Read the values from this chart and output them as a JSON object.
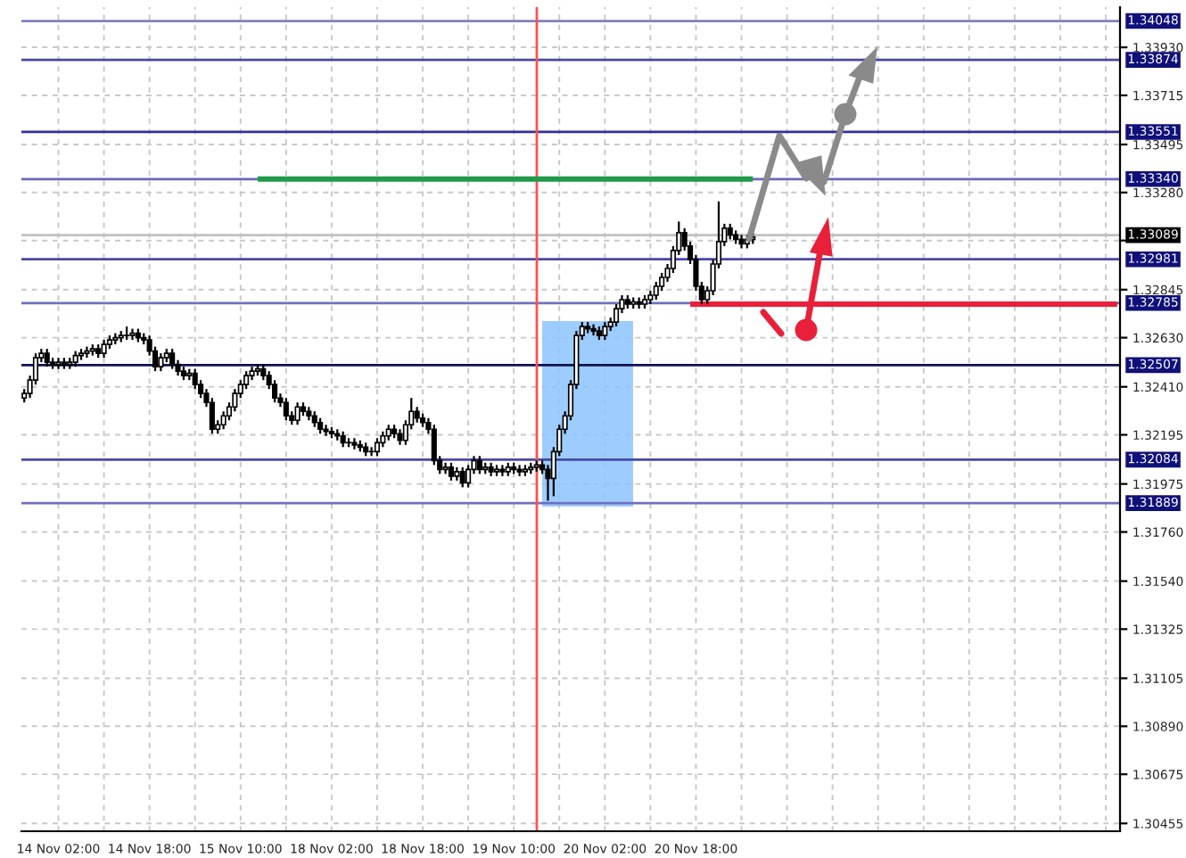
{
  "chart_data": {
    "type": "candlestick",
    "categories": [
      null,
      null,
      null,
      null,
      null,
      null,
      "14 Nov 02:00",
      null,
      null,
      null,
      null,
      null,
      null,
      null,
      null,
      null,
      null,
      null,
      null,
      null,
      null,
      null,
      "14 Nov 18:00",
      null,
      null,
      null,
      null,
      null,
      null,
      null,
      null,
      null,
      null,
      null,
      null,
      null,
      null,
      null,
      "15 Nov 10:00",
      null,
      null,
      null,
      null,
      null,
      null,
      null,
      null,
      null,
      null,
      null,
      null,
      null,
      null,
      null,
      "18 Nov 02:00",
      null,
      null,
      null,
      null,
      null,
      null,
      null,
      null,
      null,
      null,
      null,
      null,
      null,
      null,
      null,
      "18 Nov 18:00",
      null,
      null,
      null,
      null,
      null,
      null,
      null,
      null,
      null,
      null,
      null,
      null,
      null,
      null,
      null,
      "19 Nov 10:00",
      null,
      null,
      null,
      null,
      null,
      null,
      null,
      null,
      null,
      null,
      null,
      null,
      null,
      null,
      null,
      "20 Nov 02:00",
      null,
      null,
      null,
      null,
      null,
      null,
      null,
      null,
      null,
      null,
      null,
      null,
      null,
      null,
      null,
      "20 Nov 18:00",
      null,
      null,
      null,
      null,
      null,
      null,
      null,
      null,
      null,
      null,
      null,
      null,
      null,
      null,
      null,
      null,
      null,
      null,
      null,
      null,
      null,
      null,
      null,
      null,
      null,
      null,
      null,
      null,
      null,
      null,
      null,
      null,
      null,
      null,
      null,
      null,
      null,
      null,
      null,
      null,
      null,
      null,
      null,
      null,
      null,
      null,
      null,
      null,
      null,
      null,
      null,
      null,
      null,
      null,
      null,
      null,
      null,
      null,
      null,
      null,
      null,
      null,
      null,
      null,
      null,
      null,
      null,
      null,
      null,
      null,
      null,
      null,
      null,
      null
    ],
    "ohlc": [
      [
        1.3236,
        1.324,
        1.3234,
        1.3238
      ],
      [
        1.3238,
        1.3246,
        1.3236,
        1.3244
      ],
      [
        1.3244,
        1.3256,
        1.3242,
        1.3254
      ],
      [
        1.3254,
        1.3258,
        1.3252,
        1.3256
      ],
      [
        1.3256,
        1.3258,
        1.325,
        1.3252
      ],
      [
        1.3252,
        1.3254,
        1.3249,
        1.3251
      ],
      [
        1.3251,
        1.3254,
        1.3249,
        1.3252
      ],
      [
        1.3252,
        1.3254,
        1.3249,
        1.3251
      ],
      [
        1.3251,
        1.3254,
        1.3249,
        1.3252
      ],
      [
        1.3252,
        1.3257,
        1.325,
        1.3255
      ],
      [
        1.3255,
        1.3258,
        1.3253,
        1.3256
      ],
      [
        1.3256,
        1.3259,
        1.3254,
        1.3257
      ],
      [
        1.3257,
        1.326,
        1.3255,
        1.3258
      ],
      [
        1.3258,
        1.326,
        1.3254,
        1.3256
      ],
      [
        1.3256,
        1.3262,
        1.3254,
        1.326
      ],
      [
        1.326,
        1.3264,
        1.3258,
        1.3262
      ],
      [
        1.3262,
        1.3265,
        1.326,
        1.3263
      ],
      [
        1.3263,
        1.3266,
        1.3261,
        1.3264
      ],
      [
        1.3264,
        1.3268,
        1.3262,
        1.3264
      ],
      [
        1.3264,
        1.3267,
        1.3262,
        1.3265
      ],
      [
        1.3265,
        1.3267,
        1.3261,
        1.3263
      ],
      [
        1.3263,
        1.3265,
        1.326,
        1.3262
      ],
      [
        1.3262,
        1.3264,
        1.3255,
        1.3257
      ],
      [
        1.3257,
        1.3259,
        1.3248,
        1.325
      ],
      [
        1.325,
        1.3256,
        1.3248,
        1.3254
      ],
      [
        1.3254,
        1.3258,
        1.3252,
        1.3256
      ],
      [
        1.3256,
        1.3258,
        1.3249,
        1.3251
      ],
      [
        1.3251,
        1.3253,
        1.3246,
        1.3248
      ],
      [
        1.3248,
        1.325,
        1.3244,
        1.3246
      ],
      [
        1.3246,
        1.3249,
        1.3244,
        1.3247
      ],
      [
        1.3247,
        1.3249,
        1.324,
        1.3242
      ],
      [
        1.3242,
        1.3244,
        1.3236,
        1.3238
      ],
      [
        1.3238,
        1.324,
        1.3232,
        1.3234
      ],
      [
        1.3234,
        1.3236,
        1.322,
        1.3222
      ],
      [
        1.3222,
        1.3226,
        1.322,
        1.3224
      ],
      [
        1.3224,
        1.323,
        1.3222,
        1.3228
      ],
      [
        1.3228,
        1.3234,
        1.3226,
        1.3232
      ],
      [
        1.3232,
        1.324,
        1.323,
        1.3238
      ],
      [
        1.3238,
        1.3244,
        1.3236,
        1.3242
      ],
      [
        1.3242,
        1.3248,
        1.324,
        1.3246
      ],
      [
        1.3246,
        1.325,
        1.3244,
        1.3248
      ],
      [
        1.3248,
        1.3251,
        1.3246,
        1.3249
      ],
      [
        1.3249,
        1.3251,
        1.3244,
        1.3246
      ],
      [
        1.3246,
        1.3248,
        1.324,
        1.3242
      ],
      [
        1.3242,
        1.3244,
        1.3234,
        1.3236
      ],
      [
        1.3236,
        1.3238,
        1.3232,
        1.3234
      ],
      [
        1.3234,
        1.3236,
        1.3226,
        1.3228
      ],
      [
        1.3228,
        1.323,
        1.3224,
        1.3226
      ],
      [
        1.3226,
        1.3234,
        1.3224,
        1.3232
      ],
      [
        1.3232,
        1.3234,
        1.3228,
        1.323
      ],
      [
        1.323,
        1.3232,
        1.3226,
        1.3228
      ],
      [
        1.3228,
        1.323,
        1.3223,
        1.3225
      ],
      [
        1.3225,
        1.3227,
        1.322,
        1.3222
      ],
      [
        1.3222,
        1.3224,
        1.3219,
        1.3221
      ],
      [
        1.3221,
        1.3223,
        1.3218,
        1.322
      ],
      [
        1.322,
        1.3222,
        1.3217,
        1.3219
      ],
      [
        1.3219,
        1.3221,
        1.3214,
        1.3216
      ],
      [
        1.3216,
        1.3218,
        1.3214,
        1.3216
      ],
      [
        1.3216,
        1.3218,
        1.3213,
        1.3215
      ],
      [
        1.3215,
        1.3217,
        1.3212,
        1.3214
      ],
      [
        1.3214,
        1.3216,
        1.321,
        1.3212
      ],
      [
        1.3212,
        1.3214,
        1.321,
        1.3212
      ],
      [
        1.3212,
        1.3218,
        1.321,
        1.3216
      ],
      [
        1.3216,
        1.3221,
        1.3214,
        1.3219
      ],
      [
        1.3219,
        1.3224,
        1.3217,
        1.3222
      ],
      [
        1.3222,
        1.3224,
        1.3218,
        1.322
      ],
      [
        1.322,
        1.3222,
        1.3215,
        1.3217
      ],
      [
        1.3217,
        1.3226,
        1.3215,
        1.3224
      ],
      [
        1.3224,
        1.3236,
        1.3222,
        1.323
      ],
      [
        1.323,
        1.3232,
        1.3225,
        1.3227
      ],
      [
        1.3227,
        1.3229,
        1.3223,
        1.3225
      ],
      [
        1.3225,
        1.3227,
        1.322,
        1.3222
      ],
      [
        1.3222,
        1.3224,
        1.3206,
        1.3208
      ],
      [
        1.3208,
        1.321,
        1.3202,
        1.3204
      ],
      [
        1.3204,
        1.3207,
        1.3202,
        1.3205
      ],
      [
        1.3205,
        1.3207,
        1.3199,
        1.3201
      ],
      [
        1.3201,
        1.3205,
        1.3199,
        1.3203
      ],
      [
        1.3203,
        1.3205,
        1.3196,
        1.3198
      ],
      [
        1.3198,
        1.3206,
        1.3196,
        1.3204
      ],
      [
        1.3204,
        1.321,
        1.3202,
        1.3208
      ],
      [
        1.3208,
        1.321,
        1.3202,
        1.3204
      ],
      [
        1.3204,
        1.3207,
        1.3202,
        1.3205
      ],
      [
        1.3205,
        1.3207,
        1.3201,
        1.3203
      ],
      [
        1.3203,
        1.3206,
        1.3201,
        1.3204
      ],
      [
        1.3204,
        1.3206,
        1.3201,
        1.3203
      ],
      [
        1.3203,
        1.3207,
        1.3201,
        1.3205
      ],
      [
        1.3205,
        1.3207,
        1.3202,
        1.3204
      ],
      [
        1.3204,
        1.3206,
        1.3201,
        1.3203
      ],
      [
        1.3203,
        1.3206,
        1.3201,
        1.3204
      ],
      [
        1.3204,
        1.3207,
        1.3202,
        1.3205
      ],
      [
        1.3205,
        1.3208,
        1.3203,
        1.3206
      ],
      [
        1.3206,
        1.3208,
        1.3202,
        1.3204
      ],
      [
        1.3204,
        1.3206,
        1.319,
        1.32
      ],
      [
        1.32,
        1.3214,
        1.3192,
        1.3212
      ],
      [
        1.3212,
        1.3224,
        1.321,
        1.3222
      ],
      [
        1.3222,
        1.323,
        1.322,
        1.3228
      ],
      [
        1.3228,
        1.3244,
        1.3226,
        1.3242
      ],
      [
        1.3242,
        1.3266,
        1.324,
        1.3264
      ],
      [
        1.3264,
        1.327,
        1.3262,
        1.3268
      ],
      [
        1.3268,
        1.327,
        1.3265,
        1.3267
      ],
      [
        1.3267,
        1.3269,
        1.3264,
        1.3266
      ],
      [
        1.3266,
        1.3268,
        1.3262,
        1.3264
      ],
      [
        1.3264,
        1.327,
        1.3262,
        1.3268
      ],
      [
        1.3268,
        1.3272,
        1.3266,
        1.327
      ],
      [
        1.327,
        1.3278,
        1.3268,
        1.3276
      ],
      [
        1.3276,
        1.3282,
        1.3274,
        1.328
      ],
      [
        1.328,
        1.3282,
        1.3276,
        1.3278
      ],
      [
        1.3278,
        1.3281,
        1.3276,
        1.3279
      ],
      [
        1.3279,
        1.3281,
        1.3276,
        1.3278
      ],
      [
        1.3278,
        1.3282,
        1.3276,
        1.328
      ],
      [
        1.328,
        1.3284,
        1.3278,
        1.3282
      ],
      [
        1.3282,
        1.3288,
        1.328,
        1.3286
      ],
      [
        1.3286,
        1.3292,
        1.3284,
        1.329
      ],
      [
        1.329,
        1.3296,
        1.3288,
        1.3294
      ],
      [
        1.3294,
        1.3304,
        1.3292,
        1.3302
      ],
      [
        1.3302,
        1.3315,
        1.33,
        1.331
      ],
      [
        1.331,
        1.3312,
        1.3302,
        1.3304
      ],
      [
        1.3304,
        1.3306,
        1.3296,
        1.3298
      ],
      [
        1.3298,
        1.33,
        1.3284,
        1.3286
      ],
      [
        1.3286,
        1.3288,
        1.3278,
        1.328
      ],
      [
        1.328,
        1.3286,
        1.3278,
        1.3284
      ],
      [
        1.3284,
        1.3298,
        1.3282,
        1.3296
      ],
      [
        1.3296,
        1.3324,
        1.3294,
        1.3306
      ],
      [
        1.3306,
        1.3314,
        1.3304,
        1.3312
      ],
      [
        1.3312,
        1.3314,
        1.3307,
        1.3309
      ],
      [
        1.3309,
        1.3311,
        1.3305,
        1.3307
      ],
      [
        1.3307,
        1.3309,
        1.3303,
        1.3305
      ],
      [
        1.3305,
        1.3309,
        1.3303,
        1.3307
      ],
      [
        1.3307,
        1.331,
        1.3305,
        1.3308
      ],
      null,
      null,
      null,
      null,
      null,
      null,
      null,
      null,
      null,
      null,
      null,
      null,
      null,
      null,
      null,
      null,
      null,
      null,
      null,
      null,
      null,
      null,
      null,
      null,
      null,
      null,
      null,
      null,
      null,
      null,
      null,
      null,
      null,
      null,
      null,
      null,
      null,
      null,
      null,
      null,
      null,
      null,
      null,
      null,
      null,
      null,
      null,
      null,
      null,
      null,
      null,
      null,
      null,
      null,
      null,
      null,
      null,
      null,
      null,
      null,
      null,
      null,
      null,
      null
    ],
    "series": [
      {
        "type": "line",
        "color": "#1e9a4a",
        "values": [
          null,
          null,
          null,
          null,
          null,
          null,
          null,
          null,
          null,
          null,
          null,
          null,
          null,
          null,
          null,
          null,
          null,
          null,
          null,
          null,
          null,
          null,
          null,
          null,
          null,
          null,
          null,
          null,
          null,
          null,
          null,
          null,
          null,
          null,
          null,
          null,
          null,
          null,
          null,
          null,
          null,
          1.3334,
          1.3334,
          1.3334,
          1.3334,
          1.3334,
          1.3334,
          1.3334,
          1.3334,
          1.3334,
          1.3334,
          1.3334,
          1.3334,
          1.3334,
          1.3334,
          1.3334,
          1.3334,
          1.3334,
          1.3334,
          1.3334,
          1.3334,
          1.3334,
          1.3334,
          1.3334,
          1.3334,
          1.3334,
          1.3334,
          1.3334,
          1.3334,
          1.3334,
          1.3334,
          1.3334,
          1.3334,
          1.3334,
          1.3334,
          1.3334,
          1.3334,
          1.3334,
          1.3334,
          1.3334,
          1.3334,
          1.3334,
          1.3334,
          1.3334,
          1.3334,
          1.3334,
          1.3334,
          1.3334,
          1.3334,
          1.3334,
          1.3334,
          1.3334,
          1.3334,
          1.3334,
          1.3334,
          1.3334,
          1.3334,
          1.3334,
          1.3334,
          1.3334,
          1.3334,
          1.3334,
          1.3334,
          1.3334,
          1.3334,
          1.3334,
          1.3334,
          1.3334,
          1.3334,
          1.3334,
          1.3334,
          1.3334,
          1.3334,
          1.3334,
          1.3334,
          1.3334,
          1.3334,
          1.3334,
          1.3334,
          1.3334,
          1.3334,
          1.3334,
          1.3334,
          1.3334,
          1.3334,
          1.3334,
          1.3334,
          1.3334,
          1.3334,
          null,
          null,
          null,
          null,
          null,
          null,
          null,
          null,
          null,
          null,
          null,
          null,
          null,
          null,
          null,
          null,
          null,
          null,
          null,
          null,
          null,
          null,
          null,
          null,
          null,
          null,
          null,
          null,
          null,
          null,
          null,
          null,
          null,
          null,
          null,
          null,
          null,
          null,
          null,
          null,
          null,
          null,
          null,
          null,
          null,
          null,
          null,
          null,
          null,
          null,
          null,
          null,
          null,
          null,
          null,
          null,
          null,
          null,
          null,
          null,
          null,
          null,
          null,
          null
        ]
      },
      {
        "type": "line",
        "color": "#e8203a",
        "values": [
          null,
          null,
          null,
          null,
          null,
          null,
          null,
          null,
          null,
          null,
          null,
          null,
          null,
          null,
          null,
          null,
          null,
          null,
          null,
          null,
          null,
          null,
          null,
          null,
          null,
          null,
          null,
          null,
          null,
          null,
          null,
          null,
          null,
          null,
          null,
          null,
          null,
          null,
          null,
          null,
          null,
          null,
          null,
          null,
          null,
          null,
          null,
          null,
          null,
          null,
          null,
          null,
          null,
          null,
          null,
          null,
          null,
          null,
          null,
          null,
          null,
          null,
          null,
          null,
          null,
          null,
          null,
          null,
          null,
          null,
          null,
          null,
          null,
          null,
          null,
          null,
          null,
          null,
          null,
          null,
          null,
          null,
          null,
          null,
          null,
          null,
          null,
          null,
          null,
          null,
          null,
          null,
          null,
          null,
          null,
          null,
          null,
          null,
          null,
          null,
          null,
          null,
          null,
          null,
          null,
          null,
          null,
          null,
          null,
          null,
          null,
          null,
          null,
          null,
          null,
          null,
          null,
          1.3278,
          1.3278,
          1.3278,
          1.3278,
          1.3278,
          1.3278,
          1.3278,
          1.3278,
          1.3278,
          1.3278,
          1.3278,
          1.3278,
          1.3278,
          1.3278,
          1.3278,
          1.3278,
          1.3278,
          1.3278,
          1.3278,
          1.3278,
          1.3278,
          1.3278,
          1.3278,
          1.3278,
          1.3278,
          1.3278,
          1.3278,
          1.3278,
          1.3278,
          1.3278,
          1.3278,
          1.3278,
          1.3278,
          1.3278,
          1.3278,
          1.3278,
          1.3278,
          1.3278,
          1.3278,
          1.3278,
          1.3278,
          1.3278,
          1.3278,
          1.3278,
          1.3278,
          1.3278,
          1.3278,
          1.3278,
          1.3278,
          1.3278,
          1.3278,
          1.3278,
          1.3278,
          1.3278,
          1.3278,
          1.3278,
          1.3278,
          1.3278,
          1.3278,
          1.3278,
          1.3278,
          1.3278,
          1.3278,
          1.3278,
          1.3278,
          1.3278,
          1.3278,
          1.3278,
          1.3278,
          1.3278,
          1.3278,
          1.3278,
          1.3278,
          1.3278,
          1.3278,
          1.3278
        ]
      }
    ],
    "ylim": [
      1.3042,
      1.3411
    ],
    "yticks": [
      1.30455,
      {
        "value": 1.30675,
        "label": "1.30675"
      },
      {
        "value": 1.3089,
        "label": "1.30890"
      },
      {
        "value": 1.31105,
        "label": "1.31105"
      },
      {
        "value": 1.31325,
        "label": "1.31325"
      },
      {
        "value": 1.3154,
        "label": "1.31540"
      },
      {
        "value": 1.3176,
        "label": "1.31760"
      },
      {
        "value": 1.31975,
        "label": "1.31975"
      },
      {
        "value": 1.32195,
        "label": "1.32195"
      },
      {
        "value": 1.3241,
        "label": "1.32410"
      },
      {
        "value": 1.3263,
        "label": "1.32630"
      },
      {
        "value": 1.32845,
        "label": "1.32845"
      },
      {
        "value": 1.33065,
        "label": null
      },
      {
        "value": 1.3328,
        "label": "1.33280"
      },
      {
        "value": 1.33495,
        "label": "1.33495"
      },
      {
        "value": 1.33715,
        "label": "1.33715"
      },
      {
        "value": 1.3393,
        "label": "1.33930"
      }
    ],
    "ref_lines": [
      {
        "axis": "y",
        "value": 1.34048,
        "label": "1.34048",
        "color": "#8080c0"
      },
      {
        "axis": "y",
        "value": 1.33874,
        "label": "1.33874",
        "color": "#4848a8"
      },
      {
        "axis": "y",
        "value": 1.33551,
        "label": "1.33551",
        "color": "#30309a"
      },
      {
        "axis": "y",
        "value": 1.3334,
        "label": "1.33340",
        "color": "#6868b8"
      },
      {
        "axis": "y",
        "value": 1.33089,
        "label": "1.33089",
        "color": "#c0c0c0"
      },
      {
        "axis": "y",
        "value": 1.32981,
        "label": "1.32981",
        "color": "#4848a8"
      },
      {
        "axis": "y",
        "value": 1.32785,
        "label": "1.32785",
        "color": "#7070c0"
      },
      {
        "axis": "y",
        "value": 1.32507,
        "label": "1.32507",
        "color": "#101050"
      },
      {
        "axis": "y",
        "value": 1.32084,
        "label": "1.32084",
        "color": "#4848a8"
      },
      {
        "axis": "y",
        "value": 1.31889,
        "label": "1.31889",
        "color": "#7070c0"
      }
    ],
    "grid": true
  }
}
